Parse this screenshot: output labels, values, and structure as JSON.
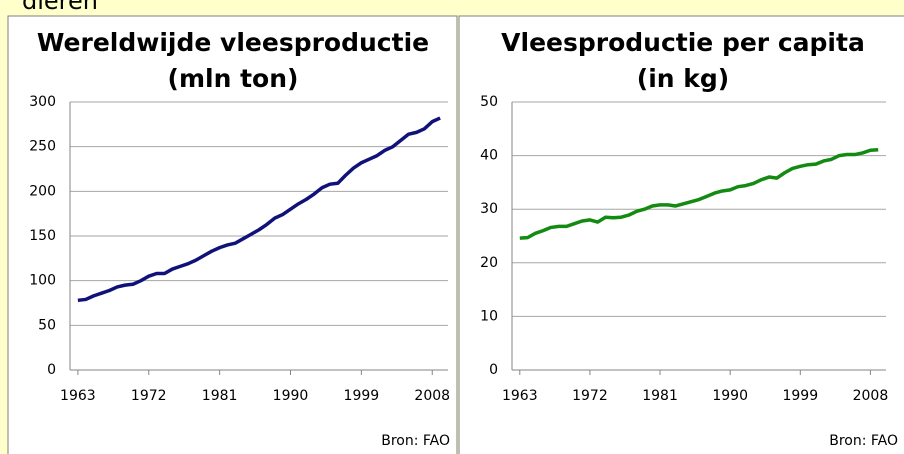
{
  "heading_fragment": "dieren",
  "chart_data": [
    {
      "type": "line",
      "title_lines": [
        "Wereldwijde vleesproductie",
        "(mln ton)"
      ],
      "source": "Bron: FAO",
      "x": [
        1963,
        1964,
        1965,
        1966,
        1967,
        1968,
        1969,
        1970,
        1971,
        1972,
        1973,
        1974,
        1975,
        1976,
        1977,
        1978,
        1979,
        1980,
        1981,
        1982,
        1983,
        1984,
        1985,
        1986,
        1987,
        1988,
        1989,
        1990,
        1991,
        1992,
        1993,
        1994,
        1995,
        1996,
        1997,
        1998,
        1999,
        2000,
        2001,
        2002,
        2003,
        2004,
        2005,
        2006,
        2007,
        2008,
        2009
      ],
      "series": [
        {
          "color": "#10127a",
          "values": [
            78,
            79,
            83,
            86,
            89,
            93,
            95,
            96,
            100,
            105,
            108,
            108,
            113,
            116,
            119,
            123,
            128,
            133,
            137,
            140,
            142,
            147,
            152,
            157,
            163,
            170,
            174,
            180,
            186,
            191,
            197,
            204,
            208,
            209,
            218,
            226,
            232,
            236,
            240,
            246,
            250,
            257,
            264,
            266,
            270,
            278,
            282
          ]
        }
      ],
      "xlim": [
        1962,
        2010
      ],
      "xticks": [
        1963,
        1972,
        1981,
        1990,
        1999,
        2008
      ],
      "ylim": [
        0,
        300
      ],
      "yticks": [
        0,
        50,
        100,
        150,
        200,
        250,
        300
      ],
      "grid": true
    },
    {
      "type": "line",
      "title_lines": [
        "Vleesproductie per capita",
        "(in kg)"
      ],
      "source": "Bron: FAO",
      "x": [
        1963,
        1964,
        1965,
        1966,
        1967,
        1968,
        1969,
        1970,
        1971,
        1972,
        1973,
        1974,
        1975,
        1976,
        1977,
        1978,
        1979,
        1980,
        1981,
        1982,
        1983,
        1984,
        1985,
        1986,
        1987,
        1988,
        1989,
        1990,
        1991,
        1992,
        1993,
        1994,
        1995,
        1996,
        1997,
        1998,
        1999,
        2000,
        2001,
        2002,
        2003,
        2004,
        2005,
        2006,
        2007,
        2008,
        2009
      ],
      "series": [
        {
          "color": "#138a12",
          "values": [
            24.6,
            24.7,
            25.5,
            26,
            26.6,
            26.8,
            26.8,
            27.3,
            27.8,
            28,
            27.6,
            28.5,
            28.4,
            28.5,
            28.9,
            29.6,
            30,
            30.6,
            30.8,
            30.8,
            30.6,
            31,
            31.4,
            31.8,
            32.4,
            33,
            33.4,
            33.6,
            34.2,
            34.4,
            34.8,
            35.5,
            36,
            35.8,
            36.8,
            37.6,
            38,
            38.3,
            38.4,
            39,
            39.3,
            40,
            40.2,
            40.2,
            40.5,
            41,
            41.1
          ]
        }
      ],
      "xlim": [
        1962,
        2010
      ],
      "xticks": [
        1963,
        1972,
        1981,
        1990,
        1999,
        2008
      ],
      "ylim": [
        0,
        50
      ],
      "yticks": [
        0,
        10,
        20,
        30,
        40,
        50
      ],
      "grid": true
    }
  ]
}
